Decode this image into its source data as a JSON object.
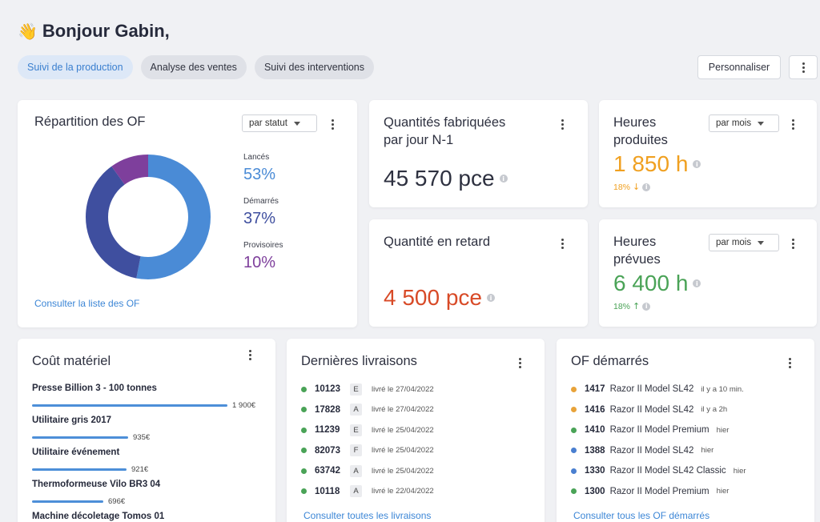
{
  "greeting": {
    "icon": "waving-hand-icon",
    "emoji": "👋",
    "text": "Bonjour Gabin,"
  },
  "tabs": [
    {
      "label": "Suivi de la production",
      "active": true
    },
    {
      "label": "Analyse des ventes",
      "active": false
    },
    {
      "label": "Suivi des interventions",
      "active": false
    }
  ],
  "toolbar": {
    "customize_label": "Personnaliser"
  },
  "of_distribution": {
    "title": "Répartition des OF",
    "filter": "par statut",
    "legend": [
      {
        "label": "Lancés",
        "value": "53%",
        "percent": 53,
        "color": "#4a8bd6"
      },
      {
        "label": "Démarrés",
        "value": "37%",
        "percent": 37,
        "color": "#3f4f9f"
      },
      {
        "label": "Provisoires",
        "value": "10%",
        "percent": 10,
        "color": "#7e3f9c"
      }
    ],
    "link": "Consulter la liste des OF"
  },
  "daily_qty": {
    "title_line1": "Quantités fabriquées",
    "title_line2": "par jour N-1",
    "value": "45 570 pce",
    "color": "#2e3140"
  },
  "late_qty": {
    "title": "Quantité en retard",
    "value": "4 500 pce",
    "color": "#d84a27"
  },
  "hours_produced": {
    "title_line1": "Heures",
    "title_line2": "produites",
    "filter": "par mois",
    "value": "1 850 h",
    "trend": "18%",
    "trend_dir": "down",
    "color": "#f0a020"
  },
  "hours_planned": {
    "title_line1": "Heures",
    "title_line2": "prévues",
    "filter": "par mois",
    "value": "6 400 h",
    "trend": "18%",
    "trend_dir": "up",
    "color": "#4aa357"
  },
  "material_cost": {
    "title": "Coût matériel",
    "items": [
      {
        "label": "Presse Billion 3 - 100 tonnes",
        "value": "1 900€",
        "fraction": 1.0
      },
      {
        "label": "Utilitaire gris 2017",
        "value": "935€",
        "fraction": 0.49
      },
      {
        "label": "Utilitaire événement",
        "value": "921€",
        "fraction": 0.485
      },
      {
        "label": "Thermoformeuse Vilo BR3 04",
        "value": "696€",
        "fraction": 0.366
      },
      {
        "label": "Machine décoletage Tomos 01",
        "value": "",
        "fraction": 0
      }
    ]
  },
  "deliveries": {
    "title": "Dernières livraisons",
    "rows": [
      {
        "num": "10123",
        "badge": "E",
        "date": "livré le 27/04/2022",
        "color": "#4aa357"
      },
      {
        "num": "17828",
        "badge": "A",
        "date": "livré le 27/04/2022",
        "color": "#4aa357"
      },
      {
        "num": "11239",
        "badge": "E",
        "date": "livré le 25/04/2022",
        "color": "#4aa357"
      },
      {
        "num": "82073",
        "badge": "F",
        "date": "livré le 25/04/2022",
        "color": "#4aa357"
      },
      {
        "num": "63742",
        "badge": "A",
        "date": "livré le 25/04/2022",
        "color": "#4aa357"
      },
      {
        "num": "10118",
        "badge": "A",
        "date": "livré le 22/04/2022",
        "color": "#4aa357"
      }
    ],
    "link": "Consulter toutes les livraisons"
  },
  "started_of": {
    "title": "OF démarrés",
    "rows": [
      {
        "num": "1417",
        "model": "Razor II Model SL42",
        "when": "il y a 10 min.",
        "color": "#e8a33a"
      },
      {
        "num": "1416",
        "model": "Razor II Model SL42",
        "when": "il y a 2h",
        "color": "#e8a33a"
      },
      {
        "num": "1410",
        "model": "Razor II Model Premium",
        "when": "hier",
        "color": "#4aa357"
      },
      {
        "num": "1388",
        "model": "Razor II Model SL42",
        "when": "hier",
        "color": "#4a7fd0"
      },
      {
        "num": "1330",
        "model": "Razor II Model SL42 Classic",
        "when": "hier",
        "color": "#4a7fd0"
      },
      {
        "num": "1300",
        "model": "Razor II Model Premium",
        "when": "hier",
        "color": "#4aa357"
      }
    ],
    "link": "Consulter tous les OF démarrés"
  }
}
